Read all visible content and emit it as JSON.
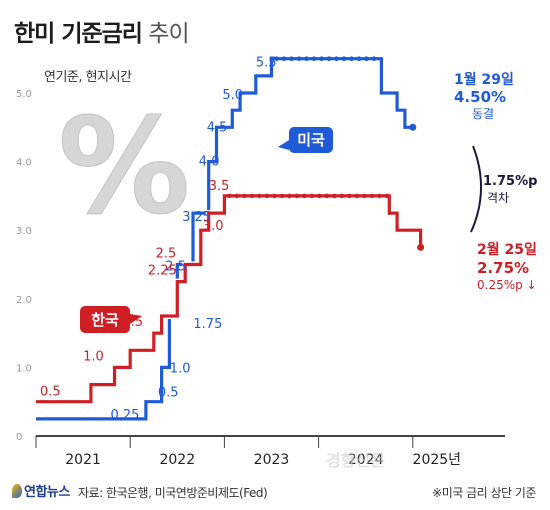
{
  "title_bold": "한미 기준금리",
  "title_light": "추이",
  "subtitle": "연기준, 현지시간",
  "source": "자료: 한국은행, 미국연방준비제도(Fed)",
  "footnote": "※미국 금리 상단 기준",
  "logo": "연합뉴스",
  "watermark": "경향신문",
  "colors": {
    "us": "#1f5bd6",
    "kr": "#cf1f25",
    "axis": "#444444",
    "tick": "#999999"
  },
  "chart_data": {
    "type": "line",
    "title": "한미 기준금리 추이",
    "subtitle": "연기준, 현지시간",
    "xlabel": "",
    "ylabel": "",
    "x_ticks": [
      "2021",
      "2022",
      "2023",
      "2024",
      "2025년"
    ],
    "y_ticks": [
      "5.0",
      "4.0",
      "3.0",
      "2.0",
      "1.0",
      "0"
    ],
    "ylim": [
      0,
      5.5
    ],
    "series": [
      {
        "name": "미국",
        "color": "#1f5bd6",
        "points": [
          [
            "2021-01",
            0.25
          ],
          [
            "2022-03",
            0.25
          ],
          [
            "2022-03",
            0.5
          ],
          [
            "2022-05",
            0.5
          ],
          [
            "2022-05",
            1.0
          ],
          [
            "2022-06",
            1.0
          ],
          [
            "2022-06",
            1.75
          ],
          [
            "2022-07",
            1.75
          ],
          [
            "2022-07",
            2.5
          ],
          [
            "2022-09",
            2.5
          ],
          [
            "2022-09",
            3.25
          ],
          [
            "2022-11",
            3.25
          ],
          [
            "2022-11",
            4.0
          ],
          [
            "2022-12",
            4.0
          ],
          [
            "2022-12",
            4.5
          ],
          [
            "2023-02",
            4.5
          ],
          [
            "2023-02",
            4.75
          ],
          [
            "2023-03",
            4.75
          ],
          [
            "2023-03",
            5.0
          ],
          [
            "2023-05",
            5.0
          ],
          [
            "2023-05",
            5.25
          ],
          [
            "2023-07",
            5.25
          ],
          [
            "2023-07",
            5.5
          ],
          [
            "2024-09",
            5.5
          ],
          [
            "2024-09",
            5.0
          ],
          [
            "2024-11",
            5.0
          ],
          [
            "2024-11",
            4.75
          ],
          [
            "2024-12",
            4.75
          ],
          [
            "2024-12",
            4.5
          ],
          [
            "2025-01",
            4.5
          ]
        ],
        "labels": [
          "0.25",
          "0.5",
          "1.0",
          "1.75",
          "2.5",
          "3.25",
          "4.0",
          "4.5",
          "5.0",
          "5.5"
        ]
      },
      {
        "name": "한국",
        "color": "#cf1f25",
        "points": [
          [
            "2021-01",
            0.5
          ],
          [
            "2021-08",
            0.5
          ],
          [
            "2021-08",
            0.75
          ],
          [
            "2021-11",
            0.75
          ],
          [
            "2021-11",
            1.0
          ],
          [
            "2022-01",
            1.0
          ],
          [
            "2022-01",
            1.25
          ],
          [
            "2022-04",
            1.25
          ],
          [
            "2022-04",
            1.5
          ],
          [
            "2022-05",
            1.5
          ],
          [
            "2022-05",
            1.75
          ],
          [
            "2022-07",
            1.75
          ],
          [
            "2022-07",
            2.25
          ],
          [
            "2022-08",
            2.25
          ],
          [
            "2022-08",
            2.5
          ],
          [
            "2022-10",
            2.5
          ],
          [
            "2022-10",
            3.0
          ],
          [
            "2022-11",
            3.0
          ],
          [
            "2022-11",
            3.25
          ],
          [
            "2023-01",
            3.25
          ],
          [
            "2023-01",
            3.5
          ],
          [
            "2024-10",
            3.5
          ],
          [
            "2024-10",
            3.25
          ],
          [
            "2024-11",
            3.25
          ],
          [
            "2024-11",
            3.0
          ],
          [
            "2025-02",
            3.0
          ],
          [
            "2025-02",
            2.75
          ]
        ],
        "labels": [
          "0.5",
          "1.0",
          "1.5",
          "2.25",
          "2.5",
          "3.0",
          "3.5"
        ]
      }
    ],
    "legend": {
      "us": "미국",
      "kr": "한국"
    },
    "annotations": {
      "us_latest_date": "1월 29일",
      "us_latest_value": "4.50%",
      "us_latest_note": "동결",
      "gap_value": "1.75%p",
      "gap_label": "격차",
      "kr_latest_date": "2월 25일",
      "kr_latest_value": "2.75%",
      "kr_latest_note": "0.25%p ↓"
    }
  }
}
